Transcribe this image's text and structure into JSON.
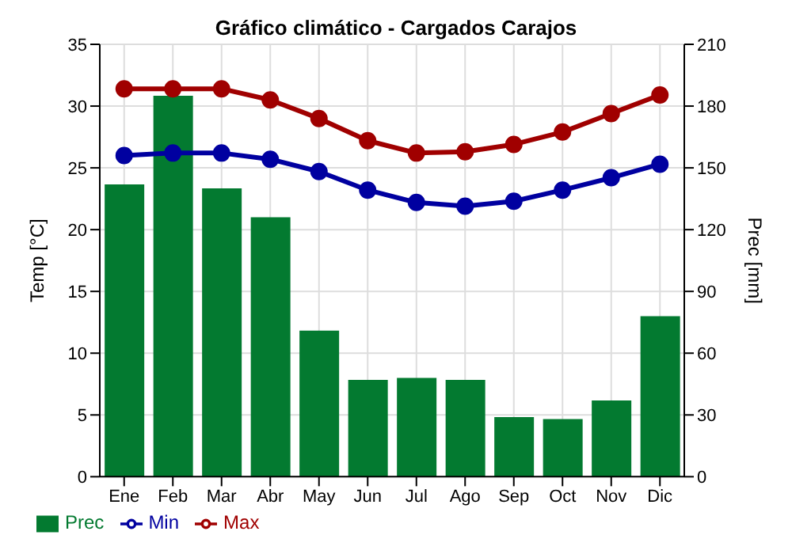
{
  "chart_data": {
    "type": "bar",
    "title": "Gráfico climático - Cargados Carajos",
    "ylabel": "Temp [°C]",
    "y2label": "Prec [mm]",
    "categories": [
      "Ene",
      "Feb",
      "Mar",
      "Abr",
      "May",
      "Jun",
      "Jul",
      "Ago",
      "Sep",
      "Oct",
      "Nov",
      "Dic"
    ],
    "series": [
      {
        "name": "Prec",
        "axis": "y2",
        "color": "#037a30",
        "values": [
          142,
          185,
          140,
          126,
          71,
          47,
          48,
          47,
          29,
          28,
          37,
          78
        ]
      },
      {
        "name": "Min",
        "type": "line",
        "color": "#0000a0",
        "values": [
          26,
          26.2,
          26.2,
          25.7,
          24.7,
          23.2,
          22.2,
          21.9,
          22.3,
          23.2,
          24.2,
          25.3
        ]
      },
      {
        "name": "Max",
        "type": "line",
        "color": "#a00000",
        "values": [
          31.4,
          31.4,
          31.4,
          30.5,
          29,
          27.2,
          26.2,
          26.3,
          26.9,
          27.9,
          29.4,
          30.9
        ]
      }
    ],
    "ylim": [
      0,
      35
    ],
    "yticks": [
      0,
      5,
      10,
      15,
      20,
      25,
      30,
      35
    ],
    "y2lim": [
      0,
      210
    ],
    "y2ticks": [
      0,
      30,
      60,
      90,
      120,
      150,
      180,
      210
    ],
    "grid": true,
    "legend": "bottom left",
    "marker": "circle"
  }
}
